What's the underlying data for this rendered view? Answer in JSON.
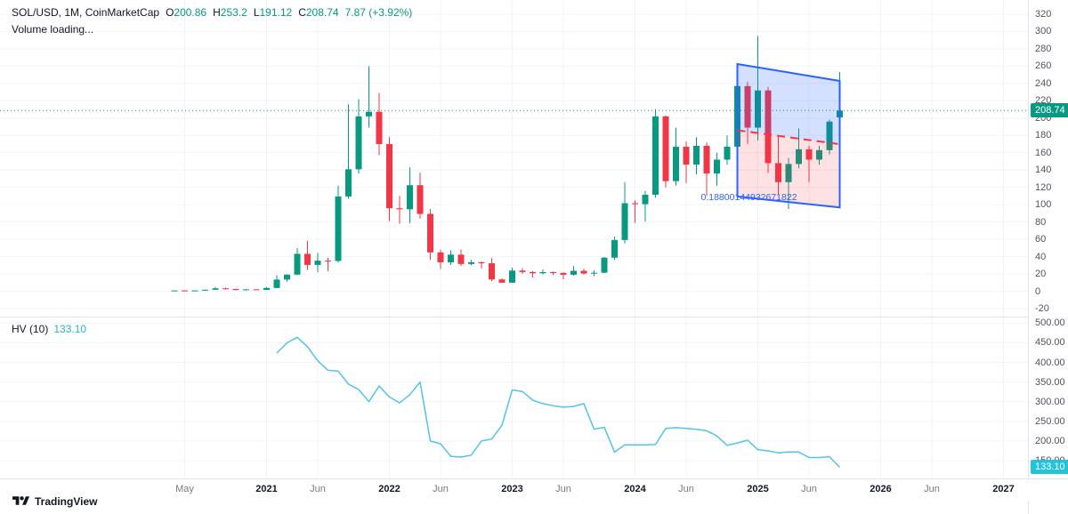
{
  "header": {
    "symbol_title": "SOL/USD, 1M, CoinMarketCap",
    "ohlc": [
      {
        "label": "O",
        "value": "200.86"
      },
      {
        "label": "H",
        "value": "253.2"
      },
      {
        "label": "L",
        "value": "191.12"
      },
      {
        "label": "C",
        "value": "208.74"
      }
    ],
    "change": "7.87 (+3.92%)",
    "volume_status": "Volume loading..."
  },
  "indicator_legend": {
    "name": "HV (10)",
    "value": "133.10"
  },
  "price_axis": {
    "ticks": [
      "320",
      "300",
      "280",
      "260",
      "240",
      "220",
      "200",
      "180",
      "160",
      "140",
      "120",
      "100",
      "80",
      "60",
      "40",
      "20",
      "0",
      "-20"
    ],
    "current_price_label": "208.74",
    "label_color": "#089981"
  },
  "hv_axis": {
    "ticks": [
      "500.00",
      "450.00",
      "400.00",
      "350.00",
      "300.00",
      "250.00",
      "200.00",
      "150.00"
    ],
    "current_value_label": "133.10",
    "label_color": "#23c3da"
  },
  "time_axis": {
    "labels": [
      {
        "text": "May",
        "t": "2020-05",
        "year": false
      },
      {
        "text": "2021",
        "t": "2021-01",
        "year": true
      },
      {
        "text": "Jun",
        "t": "2021-06",
        "year": false
      },
      {
        "text": "2022",
        "t": "2022-01",
        "year": true
      },
      {
        "text": "Jun",
        "t": "2022-06",
        "year": false
      },
      {
        "text": "2023",
        "t": "2023-01",
        "year": true
      },
      {
        "text": "Jun",
        "t": "2023-06",
        "year": false
      },
      {
        "text": "2024",
        "t": "2024-01",
        "year": true
      },
      {
        "text": "Jun",
        "t": "2024-06",
        "year": false
      },
      {
        "text": "2025",
        "t": "2025-01",
        "year": true
      },
      {
        "text": "Jun",
        "t": "2025-06",
        "year": false
      },
      {
        "text": "2026",
        "t": "2026-01",
        "year": true
      },
      {
        "text": "Jun",
        "t": "2026-06",
        "year": false
      },
      {
        "text": "2027",
        "t": "2027-01",
        "year": true
      }
    ]
  },
  "watermark": {
    "label": "TradingView"
  },
  "colors": {
    "up": "#089981",
    "down": "#f23645",
    "grid": "#f0f3fa",
    "axis_border": "#e0e3eb",
    "price_line": "#089981",
    "hv_line": "#53c3e8",
    "channel_line": "#2962ff",
    "channel_mid": "#f23645",
    "channel_fill_upper": "rgba(41,98,255,0.20)",
    "channel_fill_lower": "rgba(242,54,69,0.15)",
    "channel_text": "#2962ff"
  },
  "chart_data": {
    "type": "candlestick",
    "title": "SOL/USD, 1M, CoinMarketCap",
    "interval": "1M",
    "price_range": [
      -20,
      320
    ],
    "hv_range": [
      150,
      500
    ],
    "current_price": 208.74,
    "candles": [
      [
        "2020-04",
        0.65,
        1.05,
        0.5,
        0.92
      ],
      [
        "2020-05",
        0.92,
        1.0,
        0.48,
        0.65
      ],
      [
        "2020-06",
        0.65,
        1.0,
        0.6,
        0.95
      ],
      [
        "2020-07",
        0.95,
        1.95,
        0.77,
        1.75
      ],
      [
        "2020-08",
        1.75,
        4.9,
        1.6,
        3.4
      ],
      [
        "2020-09",
        3.4,
        4.1,
        2.0,
        2.6
      ],
      [
        "2020-10",
        2.6,
        2.9,
        1.2,
        1.4
      ],
      [
        "2020-11",
        1.4,
        2.4,
        1.1,
        2.2
      ],
      [
        "2020-12",
        2.2,
        2.3,
        1.3,
        1.5
      ],
      [
        "2021-01",
        1.5,
        4.9,
        1.4,
        3.8
      ],
      [
        "2021-02",
        3.8,
        18.6,
        3.6,
        13.5
      ],
      [
        "2021-03",
        13.5,
        19.6,
        11.1,
        19.2
      ],
      [
        "2021-04",
        19.2,
        49.9,
        18.4,
        43.2
      ],
      [
        "2021-05",
        43.2,
        58.3,
        24.5,
        30.4
      ],
      [
        "2021-06",
        30.4,
        44.3,
        22.0,
        35.3
      ],
      [
        "2021-07",
        35.3,
        38.7,
        23.2,
        35.0
      ],
      [
        "2021-08",
        35.0,
        122.0,
        33.2,
        109.5
      ],
      [
        "2021-09",
        109.5,
        216.0,
        107.0,
        140.9
      ],
      [
        "2021-10",
        140.9,
        222.0,
        136.0,
        202.0
      ],
      [
        "2021-11",
        202.0,
        259.9,
        189.0,
        207.3
      ],
      [
        "2021-12",
        207.3,
        229.0,
        157.0,
        170.0
      ],
      [
        "2022-01",
        170.0,
        178.0,
        81.0,
        95.9
      ],
      [
        "2022-02",
        95.9,
        110.0,
        78.0,
        94.7
      ],
      [
        "2022-03",
        94.7,
        143.0,
        78.5,
        122.5
      ],
      [
        "2022-04",
        122.5,
        137.0,
        84.0,
        89.3
      ],
      [
        "2022-05",
        89.3,
        95.0,
        36.2,
        44.9
      ],
      [
        "2022-06",
        44.9,
        48.0,
        25.8,
        33.4
      ],
      [
        "2022-07",
        33.4,
        47.4,
        30.3,
        42.3
      ],
      [
        "2022-08",
        42.3,
        48.2,
        29.3,
        31.5
      ],
      [
        "2022-09",
        31.5,
        36.4,
        29.9,
        33.5
      ],
      [
        "2022-10",
        33.5,
        34.4,
        26.3,
        32.3
      ],
      [
        "2022-11",
        32.3,
        38.3,
        11.7,
        13.6
      ],
      [
        "2022-12",
        13.6,
        14.9,
        9.6,
        9.9
      ],
      [
        "2023-01",
        9.9,
        27.1,
        9.8,
        23.9
      ],
      [
        "2023-02",
        23.9,
        26.9,
        20.1,
        22.2
      ],
      [
        "2023-03",
        22.2,
        23.3,
        15.6,
        20.8
      ],
      [
        "2023-04",
        20.8,
        25.1,
        19.5,
        22.1
      ],
      [
        "2023-05",
        22.1,
        22.8,
        18.7,
        21.2
      ],
      [
        "2023-06",
        21.2,
        21.9,
        13.9,
        19.1
      ],
      [
        "2023-07",
        19.1,
        29.2,
        18.1,
        23.6
      ],
      [
        "2023-08",
        23.6,
        26.1,
        19.1,
        20.5
      ],
      [
        "2023-09",
        20.5,
        24.0,
        17.3,
        21.4
      ],
      [
        "2023-10",
        21.4,
        39.5,
        20.9,
        38.8
      ],
      [
        "2023-11",
        38.8,
        63.0,
        36.1,
        59.2
      ],
      [
        "2023-12",
        59.2,
        126.0,
        55.1,
        101.7
      ],
      [
        "2024-01",
        101.7,
        105.0,
        79.0,
        100.6
      ],
      [
        "2024-02",
        100.6,
        116.0,
        80.5,
        111.5
      ],
      [
        "2024-03",
        111.5,
        210.2,
        108.0,
        202.0
      ],
      [
        "2024-04",
        202.0,
        203.0,
        120.0,
        127.2
      ],
      [
        "2024-05",
        127.2,
        188.9,
        122.0,
        166.9
      ],
      [
        "2024-06",
        166.9,
        173.0,
        125.0,
        146.3
      ],
      [
        "2024-07",
        146.3,
        178.0,
        135.0,
        168.0
      ],
      [
        "2024-08",
        168.0,
        172.0,
        110.0,
        136.0
      ],
      [
        "2024-09",
        136.0,
        160.0,
        122.0,
        152.0
      ],
      [
        "2024-10",
        152.0,
        180.0,
        146.0,
        167.0
      ],
      [
        "2024-11",
        167.0,
        249.0,
        160.0,
        237.0
      ],
      [
        "2024-12",
        237.0,
        242.0,
        170.0,
        189.0
      ],
      [
        "2025-01",
        189.0,
        294.8,
        174.0,
        232.0
      ],
      [
        "2025-02",
        232.0,
        236.0,
        136.8,
        148.0
      ],
      [
        "2025-03",
        148.0,
        180.0,
        112.0,
        126.0
      ],
      [
        "2025-04",
        126.0,
        154.0,
        95.0,
        147.0
      ],
      [
        "2025-05",
        147.0,
        188.0,
        142.0,
        164.0
      ],
      [
        "2025-06",
        164.0,
        168.0,
        126.0,
        152.0
      ],
      [
        "2025-07",
        152.0,
        168.0,
        146.0,
        163.0
      ],
      [
        "2025-08",
        163.0,
        198.0,
        158.0,
        196.0
      ],
      [
        "2025-09",
        200.86,
        253.2,
        191.12,
        208.74
      ]
    ],
    "indicator_hv": {
      "name": "HV",
      "length": 10,
      "start": "2021-02",
      "values": [
        424,
        450,
        464,
        440,
        404,
        380,
        378,
        345,
        331,
        300,
        340,
        312,
        297,
        318,
        350,
        200,
        193,
        161,
        159,
        164,
        200,
        205,
        240,
        330,
        326,
        304,
        295,
        290,
        286,
        288,
        295,
        230,
        235,
        172,
        190,
        190,
        190,
        191,
        232,
        234,
        232,
        230,
        226,
        213,
        189,
        195,
        202,
        178,
        175,
        170,
        172,
        172,
        158,
        158,
        160,
        133.1
      ]
    },
    "channel": {
      "type": "parallel-channel",
      "start": "2024-11",
      "end": "2025-09",
      "upper_start": 262.5,
      "upper_end": 243.0,
      "lower_start": 109.4,
      "lower_end": 96.8,
      "label": "0.18800144932671822"
    }
  }
}
